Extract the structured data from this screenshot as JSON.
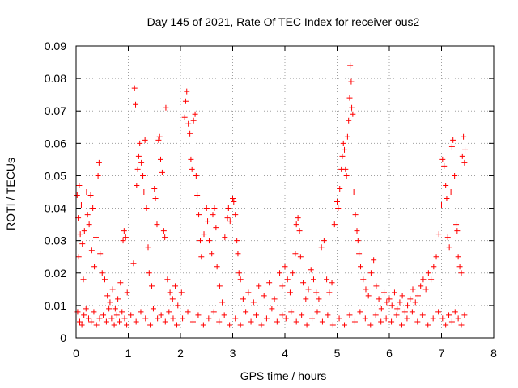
{
  "chart_data": {
    "type": "scatter",
    "title": "Day 145 of 2021, Rate Of TEC Index for receiver ous2",
    "xlabel": "GPS time / hours",
    "ylabel": "ROTI / TECUs",
    "xlim": [
      0,
      8
    ],
    "ylim": [
      0,
      0.09
    ],
    "xticks": [
      "0",
      "1",
      "2",
      "3",
      "4",
      "5",
      "6",
      "7",
      "8"
    ],
    "yticks": [
      "0",
      "0.01",
      "0.02",
      "0.03",
      "0.04",
      "0.05",
      "0.06",
      "0.07",
      "0.08",
      "0.09"
    ],
    "grid": true,
    "marker": "+",
    "color": "#ff0000",
    "points": [
      [
        0.02,
        0.044
      ],
      [
        0.04,
        0.037
      ],
      [
        0.05,
        0.025
      ],
      [
        0.06,
        0.047
      ],
      [
        0.08,
        0.032
      ],
      [
        0.1,
        0.041
      ],
      [
        0.12,
        0.029
      ],
      [
        0.14,
        0.018
      ],
      [
        0.16,
        0.033
      ],
      [
        0.2,
        0.045
      ],
      [
        0.22,
        0.038
      ],
      [
        0.25,
        0.035
      ],
      [
        0.28,
        0.044
      ],
      [
        0.3,
        0.027
      ],
      [
        0.32,
        0.04
      ],
      [
        0.35,
        0.022
      ],
      [
        0.38,
        0.031
      ],
      [
        0.42,
        0.05
      ],
      [
        0.44,
        0.054
      ],
      [
        0.46,
        0.026
      ],
      [
        0.5,
        0.02
      ],
      [
        0.55,
        0.018
      ],
      [
        0.6,
        0.013
      ],
      [
        0.65,
        0.011
      ],
      [
        0.7,
        0.015
      ],
      [
        0.75,
        0.009
      ],
      [
        0.8,
        0.012
      ],
      [
        0.85,
        0.017
      ],
      [
        0.9,
        0.03
      ],
      [
        0.92,
        0.033
      ],
      [
        0.95,
        0.031
      ],
      [
        0.98,
        0.014
      ],
      [
        0.03,
        0.008
      ],
      [
        0.07,
        0.005
      ],
      [
        0.11,
        0.004
      ],
      [
        0.15,
        0.007
      ],
      [
        0.19,
        0.009
      ],
      [
        0.24,
        0.006
      ],
      [
        0.29,
        0.005
      ],
      [
        0.34,
        0.008
      ],
      [
        0.39,
        0.004
      ],
      [
        0.45,
        0.006
      ],
      [
        0.52,
        0.007
      ],
      [
        0.58,
        0.005
      ],
      [
        0.63,
        0.009
      ],
      [
        0.68,
        0.006
      ],
      [
        0.73,
        0.004
      ],
      [
        0.78,
        0.007
      ],
      [
        0.83,
        0.005
      ],
      [
        0.88,
        0.008
      ],
      [
        0.93,
        0.006
      ],
      [
        0.97,
        0.004
      ],
      [
        1.1,
        0.023
      ],
      [
        1.12,
        0.077
      ],
      [
        1.14,
        0.072
      ],
      [
        1.16,
        0.047
      ],
      [
        1.18,
        0.052
      ],
      [
        1.2,
        0.056
      ],
      [
        1.22,
        0.06
      ],
      [
        1.25,
        0.054
      ],
      [
        1.28,
        0.05
      ],
      [
        1.3,
        0.045
      ],
      [
        1.32,
        0.061
      ],
      [
        1.35,
        0.04
      ],
      [
        1.38,
        0.028
      ],
      [
        1.4,
        0.02
      ],
      [
        1.45,
        0.016
      ],
      [
        1.5,
        0.046
      ],
      [
        1.52,
        0.043
      ],
      [
        1.55,
        0.035
      ],
      [
        1.58,
        0.061
      ],
      [
        1.6,
        0.062
      ],
      [
        1.62,
        0.055
      ],
      [
        1.65,
        0.051
      ],
      [
        1.68,
        0.033
      ],
      [
        1.7,
        0.031
      ],
      [
        1.72,
        0.071
      ],
      [
        1.75,
        0.018
      ],
      [
        1.8,
        0.014
      ],
      [
        1.85,
        0.012
      ],
      [
        1.9,
        0.016
      ],
      [
        1.95,
        0.01
      ],
      [
        1.05,
        0.007
      ],
      [
        1.15,
        0.005
      ],
      [
        1.24,
        0.008
      ],
      [
        1.33,
        0.006
      ],
      [
        1.42,
        0.004
      ],
      [
        1.48,
        0.009
      ],
      [
        1.56,
        0.006
      ],
      [
        1.63,
        0.007
      ],
      [
        1.71,
        0.005
      ],
      [
        1.78,
        0.008
      ],
      [
        1.86,
        0.006
      ],
      [
        1.93,
        0.004
      ],
      [
        2.02,
        0.014
      ],
      [
        2.08,
        0.068
      ],
      [
        2.1,
        0.073
      ],
      [
        2.12,
        0.076
      ],
      [
        2.15,
        0.066
      ],
      [
        2.18,
        0.063
      ],
      [
        2.2,
        0.055
      ],
      [
        2.22,
        0.052
      ],
      [
        2.25,
        0.067
      ],
      [
        2.28,
        0.069
      ],
      [
        2.3,
        0.05
      ],
      [
        2.32,
        0.044
      ],
      [
        2.35,
        0.038
      ],
      [
        2.38,
        0.03
      ],
      [
        2.4,
        0.025
      ],
      [
        2.45,
        0.032
      ],
      [
        2.5,
        0.04
      ],
      [
        2.52,
        0.036
      ],
      [
        2.55,
        0.03
      ],
      [
        2.6,
        0.026
      ],
      [
        2.62,
        0.038
      ],
      [
        2.65,
        0.04
      ],
      [
        2.68,
        0.034
      ],
      [
        2.7,
        0.022
      ],
      [
        2.75,
        0.016
      ],
      [
        2.8,
        0.011
      ],
      [
        2.85,
        0.031
      ],
      [
        2.9,
        0.037
      ],
      [
        2.92,
        0.04
      ],
      [
        2.95,
        0.036
      ],
      [
        2.04,
        0.006
      ],
      [
        2.14,
        0.008
      ],
      [
        2.24,
        0.005
      ],
      [
        2.34,
        0.007
      ],
      [
        2.44,
        0.004
      ],
      [
        2.54,
        0.006
      ],
      [
        2.64,
        0.008
      ],
      [
        2.74,
        0.005
      ],
      [
        2.84,
        0.007
      ],
      [
        2.94,
        0.004
      ],
      [
        3.0,
        0.043
      ],
      [
        3.02,
        0.042
      ],
      [
        3.05,
        0.038
      ],
      [
        3.08,
        0.03
      ],
      [
        3.1,
        0.026
      ],
      [
        3.12,
        0.02
      ],
      [
        3.15,
        0.018
      ],
      [
        3.2,
        0.012
      ],
      [
        3.3,
        0.014
      ],
      [
        3.4,
        0.011
      ],
      [
        3.5,
        0.016
      ],
      [
        3.6,
        0.013
      ],
      [
        3.7,
        0.017
      ],
      [
        3.8,
        0.012
      ],
      [
        3.9,
        0.02
      ],
      [
        3.95,
        0.016
      ],
      [
        3.05,
        0.006
      ],
      [
        3.15,
        0.004
      ],
      [
        3.25,
        0.008
      ],
      [
        3.35,
        0.005
      ],
      [
        3.45,
        0.007
      ],
      [
        3.55,
        0.004
      ],
      [
        3.65,
        0.006
      ],
      [
        3.75,
        0.009
      ],
      [
        3.85,
        0.005
      ],
      [
        3.95,
        0.007
      ],
      [
        4.0,
        0.022
      ],
      [
        4.05,
        0.018
      ],
      [
        4.1,
        0.014
      ],
      [
        4.15,
        0.02
      ],
      [
        4.2,
        0.026
      ],
      [
        4.22,
        0.035
      ],
      [
        4.25,
        0.037
      ],
      [
        4.28,
        0.033
      ],
      [
        4.3,
        0.025
      ],
      [
        4.35,
        0.017
      ],
      [
        4.4,
        0.012
      ],
      [
        4.45,
        0.015
      ],
      [
        4.5,
        0.021
      ],
      [
        4.55,
        0.018
      ],
      [
        4.6,
        0.014
      ],
      [
        4.65,
        0.012
      ],
      [
        4.7,
        0.028
      ],
      [
        4.75,
        0.03
      ],
      [
        4.8,
        0.018
      ],
      [
        4.85,
        0.014
      ],
      [
        4.9,
        0.017
      ],
      [
        4.95,
        0.035
      ],
      [
        4.02,
        0.006
      ],
      [
        4.12,
        0.008
      ],
      [
        4.22,
        0.005
      ],
      [
        4.32,
        0.007
      ],
      [
        4.42,
        0.004
      ],
      [
        4.52,
        0.006
      ],
      [
        4.62,
        0.008
      ],
      [
        4.72,
        0.005
      ],
      [
        4.82,
        0.007
      ],
      [
        4.92,
        0.004
      ],
      [
        5.0,
        0.042
      ],
      [
        5.02,
        0.04
      ],
      [
        5.05,
        0.046
      ],
      [
        5.08,
        0.052
      ],
      [
        5.1,
        0.056
      ],
      [
        5.12,
        0.06
      ],
      [
        5.14,
        0.058
      ],
      [
        5.16,
        0.052
      ],
      [
        5.18,
        0.05
      ],
      [
        5.2,
        0.062
      ],
      [
        5.22,
        0.067
      ],
      [
        5.24,
        0.074
      ],
      [
        5.25,
        0.084
      ],
      [
        5.27,
        0.079
      ],
      [
        5.28,
        0.071
      ],
      [
        5.3,
        0.069
      ],
      [
        5.32,
        0.045
      ],
      [
        5.35,
        0.038
      ],
      [
        5.38,
        0.033
      ],
      [
        5.4,
        0.03
      ],
      [
        5.42,
        0.026
      ],
      [
        5.45,
        0.022
      ],
      [
        5.5,
        0.018
      ],
      [
        5.55,
        0.015
      ],
      [
        5.6,
        0.013
      ],
      [
        5.65,
        0.02
      ],
      [
        5.7,
        0.024
      ],
      [
        5.75,
        0.016
      ],
      [
        5.8,
        0.012
      ],
      [
        5.85,
        0.009
      ],
      [
        5.9,
        0.014
      ],
      [
        5.95,
        0.011
      ],
      [
        5.04,
        0.006
      ],
      [
        5.14,
        0.004
      ],
      [
        5.24,
        0.007
      ],
      [
        5.34,
        0.005
      ],
      [
        5.44,
        0.008
      ],
      [
        5.54,
        0.006
      ],
      [
        5.64,
        0.004
      ],
      [
        5.74,
        0.007
      ],
      [
        5.84,
        0.005
      ],
      [
        5.94,
        0.006
      ],
      [
        6.0,
        0.012
      ],
      [
        6.05,
        0.01
      ],
      [
        6.1,
        0.014
      ],
      [
        6.15,
        0.009
      ],
      [
        6.2,
        0.011
      ],
      [
        6.25,
        0.013
      ],
      [
        6.3,
        0.008
      ],
      [
        6.35,
        0.01
      ],
      [
        6.4,
        0.012
      ],
      [
        6.45,
        0.015
      ],
      [
        6.5,
        0.011
      ],
      [
        6.55,
        0.013
      ],
      [
        6.6,
        0.016
      ],
      [
        6.65,
        0.018
      ],
      [
        6.7,
        0.015
      ],
      [
        6.75,
        0.02
      ],
      [
        6.8,
        0.018
      ],
      [
        6.85,
        0.022
      ],
      [
        6.9,
        0.025
      ],
      [
        6.95,
        0.032
      ],
      [
        6.04,
        0.005
      ],
      [
        6.14,
        0.007
      ],
      [
        6.24,
        0.004
      ],
      [
        6.34,
        0.006
      ],
      [
        6.44,
        0.008
      ],
      [
        6.54,
        0.005
      ],
      [
        6.64,
        0.007
      ],
      [
        6.74,
        0.004
      ],
      [
        6.84,
        0.006
      ],
      [
        6.94,
        0.008
      ],
      [
        7.0,
        0.041
      ],
      [
        7.02,
        0.055
      ],
      [
        7.05,
        0.053
      ],
      [
        7.08,
        0.047
      ],
      [
        7.1,
        0.043
      ],
      [
        7.12,
        0.031
      ],
      [
        7.15,
        0.028
      ],
      [
        7.18,
        0.045
      ],
      [
        7.2,
        0.059
      ],
      [
        7.22,
        0.061
      ],
      [
        7.25,
        0.05
      ],
      [
        7.28,
        0.035
      ],
      [
        7.3,
        0.033
      ],
      [
        7.32,
        0.025
      ],
      [
        7.35,
        0.022
      ],
      [
        7.38,
        0.02
      ],
      [
        7.4,
        0.056
      ],
      [
        7.42,
        0.062
      ],
      [
        7.44,
        0.054
      ],
      [
        7.45,
        0.058
      ],
      [
        7.02,
        0.006
      ],
      [
        7.08,
        0.004
      ],
      [
        7.14,
        0.007
      ],
      [
        7.2,
        0.005
      ],
      [
        7.26,
        0.008
      ],
      [
        7.32,
        0.006
      ],
      [
        7.38,
        0.004
      ],
      [
        7.44,
        0.007
      ]
    ]
  }
}
